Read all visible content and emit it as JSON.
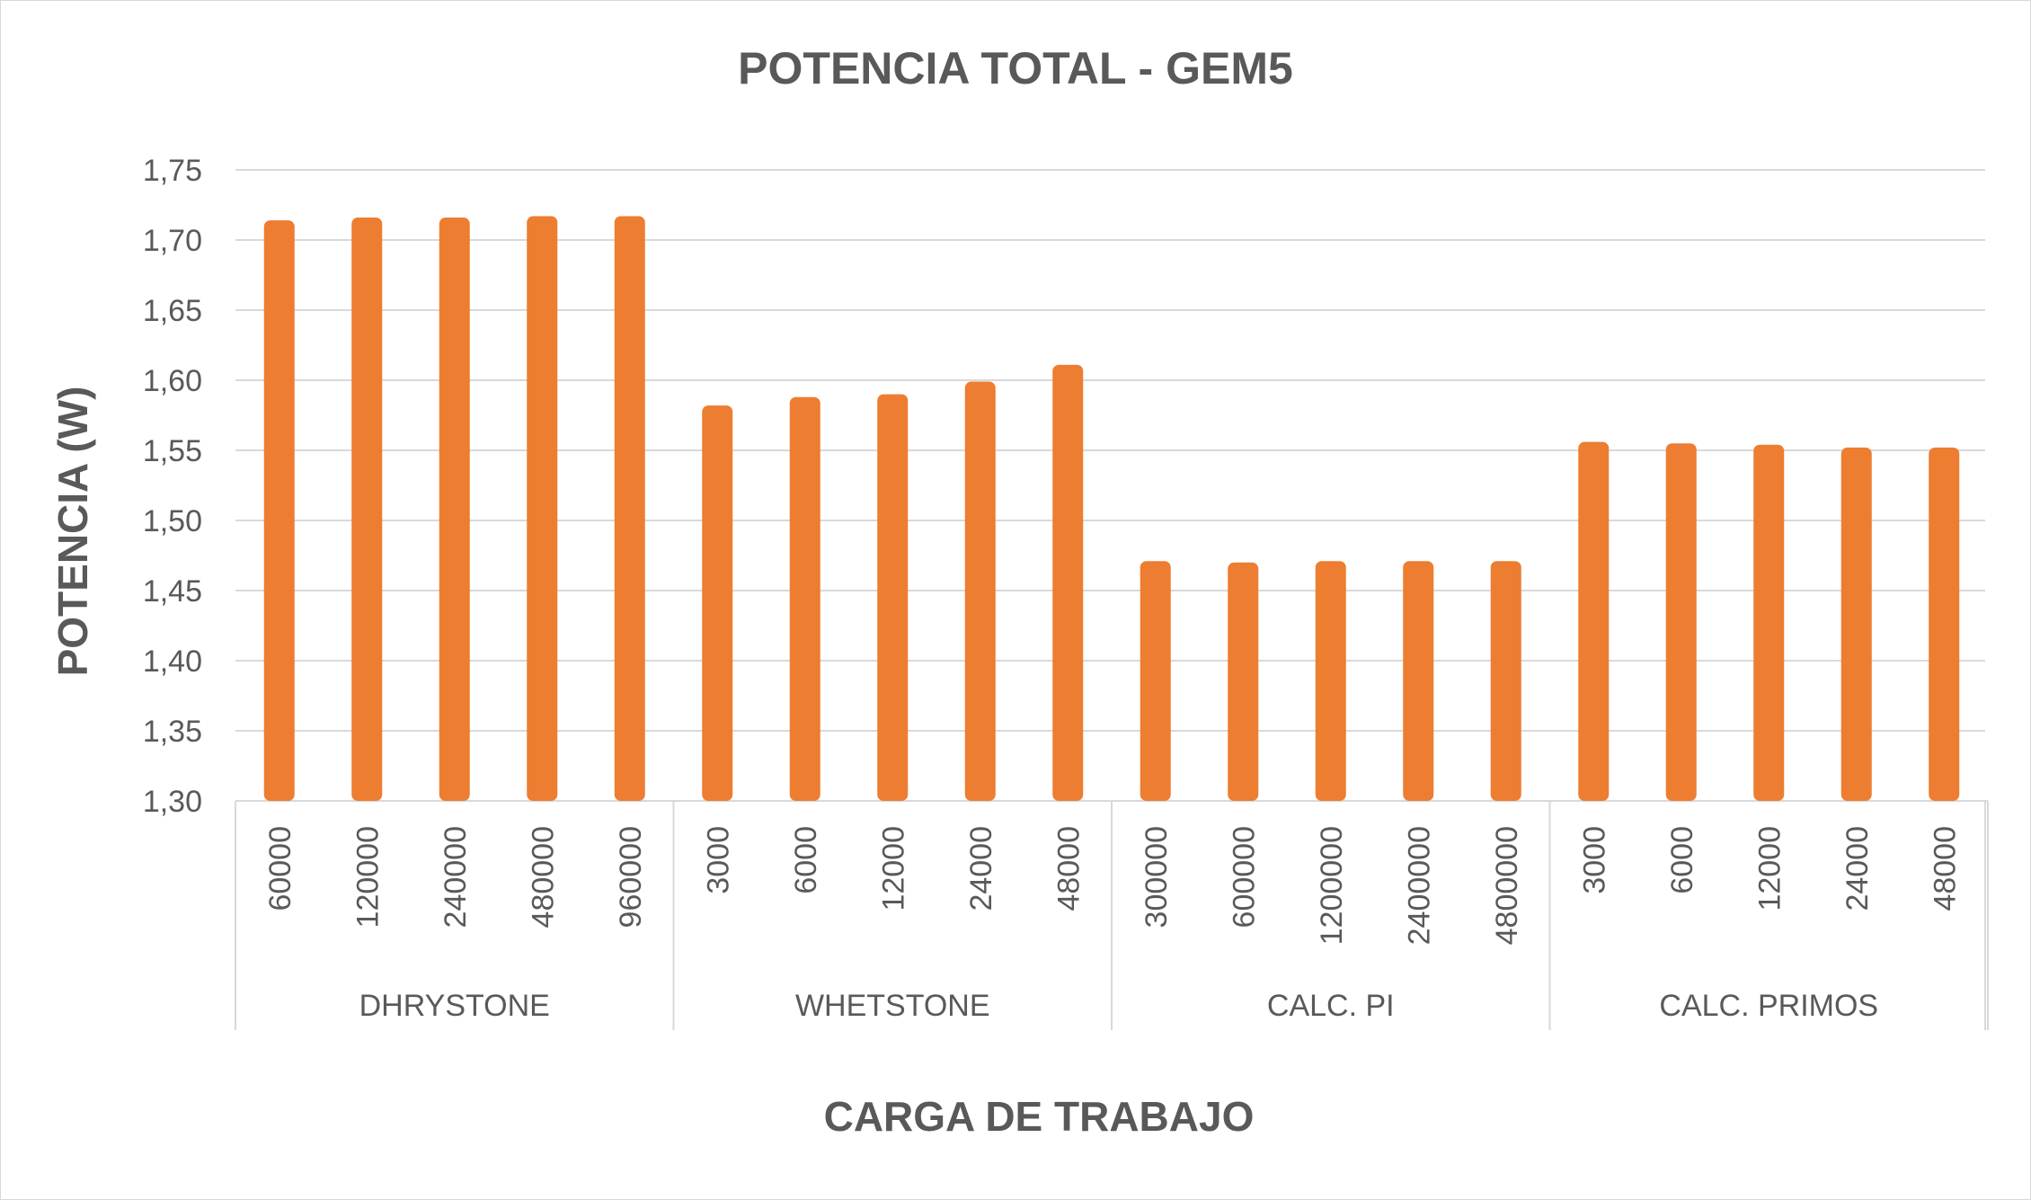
{
  "chart_data": {
    "type": "bar",
    "title": "POTENCIA TOTAL - GEM5",
    "xlabel": "CARGA DE TRABAJO",
    "ylabel": "POTENCIA (W)",
    "ylim": [
      1.3,
      1.75
    ],
    "yticks": [
      "1,30",
      "1,35",
      "1,40",
      "1,45",
      "1,50",
      "1,55",
      "1,60",
      "1,65",
      "1,70",
      "1,75"
    ],
    "grid": true,
    "legend": "none",
    "bar_color": "#ED7D31",
    "groups": [
      {
        "name": "DHRYSTONE",
        "categories": [
          "60000",
          "120000",
          "240000",
          "480000",
          "960000"
        ],
        "values": [
          1.714,
          1.716,
          1.716,
          1.717,
          1.717
        ]
      },
      {
        "name": "WHETSTONE",
        "categories": [
          "3000",
          "6000",
          "12000",
          "24000",
          "48000"
        ],
        "values": [
          1.582,
          1.588,
          1.59,
          1.599,
          1.611
        ]
      },
      {
        "name": "CALC. PI",
        "categories": [
          "300000",
          "600000",
          "1200000",
          "2400000",
          "4800000"
        ],
        "values": [
          1.471,
          1.47,
          1.471,
          1.471,
          1.471
        ]
      },
      {
        "name": "CALC. PRIMOS",
        "categories": [
          "3000",
          "6000",
          "12000",
          "24000",
          "48000"
        ],
        "values": [
          1.556,
          1.555,
          1.554,
          1.552,
          1.552
        ]
      }
    ]
  }
}
